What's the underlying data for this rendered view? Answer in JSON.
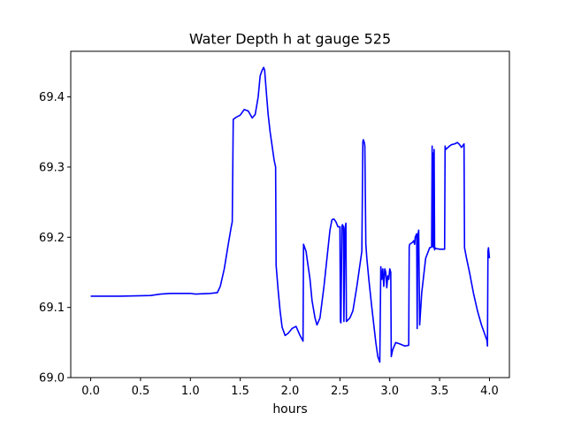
{
  "chart_data": {
    "type": "line",
    "title": "Water Depth h at gauge 525",
    "xlabel": "hours",
    "ylabel": "",
    "xlim": [
      -0.2,
      4.2
    ],
    "ylim": [
      69.0,
      69.465
    ],
    "x_ticks": [
      0.0,
      0.5,
      1.0,
      1.5,
      2.0,
      2.5,
      3.0,
      3.5,
      4.0
    ],
    "x_tick_labels": [
      "0.0",
      "0.5",
      "1.0",
      "1.5",
      "2.0",
      "2.5",
      "3.0",
      "3.5",
      "4.0"
    ],
    "y_ticks": [
      69.0,
      69.1,
      69.2,
      69.3,
      69.4
    ],
    "y_tick_labels": [
      "69.0",
      "69.1",
      "69.2",
      "69.3",
      "69.4"
    ],
    "grid": false,
    "series": [
      {
        "color": "#0000ff",
        "x": [
          0.0,
          0.3,
          0.6,
          0.7,
          0.8,
          1.0,
          1.05,
          1.2,
          1.27,
          1.3,
          1.34,
          1.38,
          1.41,
          1.42,
          1.43,
          1.46,
          1.5,
          1.54,
          1.58,
          1.62,
          1.65,
          1.68,
          1.7,
          1.72,
          1.735,
          1.745,
          1.76,
          1.78,
          1.8,
          1.82,
          1.84,
          1.855,
          1.86,
          1.88,
          1.9,
          1.92,
          1.95,
          1.98,
          2.02,
          2.06,
          2.1,
          2.13,
          2.135,
          2.16,
          2.2,
          2.22,
          2.25,
          2.27,
          2.3,
          2.34,
          2.37,
          2.4,
          2.42,
          2.44,
          2.46,
          2.48,
          2.5,
          2.505,
          2.51,
          2.52,
          2.525,
          2.535,
          2.54,
          2.55,
          2.56,
          2.565,
          2.6,
          2.63,
          2.67,
          2.7,
          2.72,
          2.73,
          2.735,
          2.745,
          2.75,
          2.76,
          2.77,
          2.79,
          2.82,
          2.86,
          2.88,
          2.9,
          2.91,
          2.92,
          2.93,
          2.94,
          2.95,
          2.96,
          2.97,
          2.98,
          2.99,
          3.0,
          3.01,
          3.015,
          3.03,
          3.06,
          3.1,
          3.15,
          3.19,
          3.195,
          3.2,
          3.23,
          3.24,
          3.25,
          3.255,
          3.27,
          3.275,
          3.28,
          3.29,
          3.3,
          3.32,
          3.36,
          3.4,
          3.42,
          3.425,
          3.43,
          3.435,
          3.44,
          3.445,
          3.45,
          3.455,
          3.46,
          3.5,
          3.55,
          3.555,
          3.56,
          3.6,
          3.62,
          3.65,
          3.68,
          3.7,
          3.72,
          3.745,
          3.75,
          3.77,
          3.8,
          3.84,
          3.88,
          3.92,
          3.95,
          3.975,
          3.98,
          3.985,
          3.99,
          4.0
        ],
        "values": [
          69.116,
          69.116,
          69.117,
          69.119,
          69.12,
          69.12,
          69.119,
          69.12,
          69.121,
          69.13,
          69.155,
          69.19,
          69.215,
          69.222,
          69.368,
          69.371,
          69.374,
          69.382,
          69.38,
          69.37,
          69.375,
          69.4,
          69.43,
          69.438,
          69.442,
          69.438,
          69.41,
          69.375,
          69.35,
          69.33,
          69.31,
          69.3,
          69.16,
          69.125,
          69.095,
          69.072,
          69.06,
          69.063,
          69.07,
          69.073,
          69.06,
          69.052,
          69.19,
          69.18,
          69.14,
          69.11,
          69.085,
          69.075,
          69.085,
          69.13,
          69.17,
          69.21,
          69.225,
          69.226,
          69.222,
          69.215,
          69.215,
          69.08,
          69.078,
          69.215,
          69.218,
          69.215,
          69.08,
          69.212,
          69.22,
          69.08,
          69.085,
          69.095,
          69.13,
          69.16,
          69.18,
          69.336,
          69.339,
          69.335,
          69.33,
          69.19,
          69.17,
          69.14,
          69.1,
          69.05,
          69.03,
          69.022,
          69.158,
          69.14,
          69.155,
          69.13,
          69.155,
          69.15,
          69.128,
          69.145,
          69.14,
          69.155,
          69.15,
          69.03,
          69.04,
          69.05,
          69.048,
          69.045,
          69.046,
          69.186,
          69.19,
          69.193,
          69.195,
          69.19,
          69.2,
          69.205,
          69.07,
          69.2,
          69.21,
          69.075,
          69.12,
          69.17,
          69.185,
          69.186,
          69.33,
          69.187,
          69.32,
          69.185,
          69.325,
          69.182,
          69.185,
          69.184,
          69.183,
          69.183,
          69.33,
          69.325,
          69.33,
          69.332,
          69.333,
          69.335,
          69.332,
          69.328,
          69.333,
          69.185,
          69.17,
          69.15,
          69.12,
          69.095,
          69.075,
          69.063,
          69.053,
          69.045,
          69.18,
          69.185,
          69.17
        ]
      }
    ]
  }
}
